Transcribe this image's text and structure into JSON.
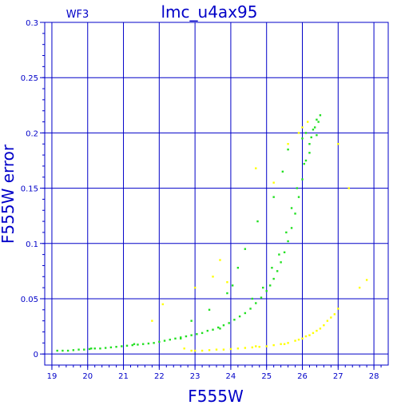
{
  "chart_data": {
    "type": "scatter",
    "title": "lmc_u4ax95",
    "corner_label": "WF3",
    "xlabel": "F555W",
    "ylabel": "F555W error",
    "xlim": [
      18.8,
      28.4
    ],
    "ylim": [
      -0.01,
      0.3
    ],
    "x_ticks": [
      19,
      20,
      21,
      22,
      23,
      24,
      25,
      26,
      27,
      28
    ],
    "y_ticks": [
      0,
      0.05,
      0.1,
      0.15,
      0.2,
      0.25,
      0.3
    ],
    "x_tick_labels": [
      "19",
      "20",
      "21",
      "22",
      "23",
      "24",
      "25",
      "26",
      "27",
      "28"
    ],
    "y_tick_labels": [
      "0",
      "0.05",
      "0.1",
      "0.15",
      "0.2",
      "0.25",
      "0.3"
    ],
    "grid": true,
    "colors": {
      "axis": "#0000c8",
      "grid": "#0000c8",
      "green_series": "#22e022",
      "yellow_series": "#ffff00"
    },
    "series": [
      {
        "color": "green",
        "points": [
          [
            19.15,
            0.003
          ],
          [
            19.3,
            0.003
          ],
          [
            19.45,
            0.003
          ],
          [
            19.6,
            0.0035
          ],
          [
            19.75,
            0.004
          ],
          [
            19.9,
            0.004
          ],
          [
            20.05,
            0.0045
          ],
          [
            20.2,
            0.005
          ],
          [
            20.35,
            0.005
          ],
          [
            20.5,
            0.0055
          ],
          [
            20.65,
            0.006
          ],
          [
            20.8,
            0.0065
          ],
          [
            20.95,
            0.007
          ],
          [
            21.1,
            0.0075
          ],
          [
            21.25,
            0.008
          ],
          [
            21.4,
            0.0085
          ],
          [
            21.55,
            0.009
          ],
          [
            21.7,
            0.0095
          ],
          [
            21.85,
            0.01
          ],
          [
            22.0,
            0.011
          ],
          [
            22.15,
            0.012
          ],
          [
            22.3,
            0.013
          ],
          [
            22.45,
            0.014
          ],
          [
            22.6,
            0.015
          ],
          [
            22.75,
            0.016
          ],
          [
            22.9,
            0.017
          ],
          [
            23.05,
            0.018
          ],
          [
            23.2,
            0.019
          ],
          [
            23.35,
            0.021
          ],
          [
            23.5,
            0.022
          ],
          [
            23.65,
            0.024
          ],
          [
            23.8,
            0.026
          ],
          [
            23.95,
            0.028
          ],
          [
            24.1,
            0.031
          ],
          [
            24.25,
            0.034
          ],
          [
            24.4,
            0.037
          ],
          [
            24.55,
            0.041
          ],
          [
            24.7,
            0.046
          ],
          [
            24.85,
            0.051
          ],
          [
            25.0,
            0.057
          ],
          [
            25.1,
            0.062
          ],
          [
            25.2,
            0.068
          ],
          [
            25.3,
            0.075
          ],
          [
            25.4,
            0.083
          ],
          [
            25.5,
            0.092
          ],
          [
            25.6,
            0.102
          ],
          [
            25.7,
            0.114
          ],
          [
            25.8,
            0.127
          ],
          [
            25.9,
            0.142
          ],
          [
            26.0,
            0.158
          ],
          [
            26.1,
            0.175
          ],
          [
            26.2,
            0.19
          ],
          [
            26.3,
            0.203
          ],
          [
            26.4,
            0.212
          ],
          [
            26.5,
            0.216
          ],
          [
            20.1,
            0.005
          ],
          [
            21.3,
            0.009
          ],
          [
            22.6,
            0.014
          ],
          [
            23.7,
            0.023
          ],
          [
            24.6,
            0.05
          ],
          [
            24.9,
            0.06
          ],
          [
            25.15,
            0.078
          ],
          [
            25.35,
            0.09
          ],
          [
            25.55,
            0.11
          ],
          [
            25.7,
            0.132
          ],
          [
            25.85,
            0.15
          ],
          [
            26.05,
            0.172
          ],
          [
            26.25,
            0.196
          ],
          [
            26.35,
            0.205
          ],
          [
            26.45,
            0.21
          ],
          [
            23.9,
            0.055
          ],
          [
            24.2,
            0.078
          ],
          [
            24.4,
            0.095
          ],
          [
            24.75,
            0.12
          ],
          [
            25.2,
            0.142
          ],
          [
            25.45,
            0.165
          ],
          [
            26.0,
            0.195
          ],
          [
            26.1,
            0.2
          ],
          [
            23.4,
            0.04
          ],
          [
            22.9,
            0.03
          ],
          [
            24.05,
            0.062
          ],
          [
            25.6,
            0.185
          ],
          [
            26.2,
            0.182
          ],
          [
            26.4,
            0.198
          ]
        ]
      },
      {
        "color": "yellow",
        "points": [
          [
            23.0,
            0.003
          ],
          [
            23.2,
            0.003
          ],
          [
            23.4,
            0.0035
          ],
          [
            23.6,
            0.004
          ],
          [
            23.8,
            0.004
          ],
          [
            24.0,
            0.0045
          ],
          [
            24.2,
            0.005
          ],
          [
            24.4,
            0.0055
          ],
          [
            24.6,
            0.006
          ],
          [
            24.8,
            0.0065
          ],
          [
            25.0,
            0.007
          ],
          [
            25.2,
            0.008
          ],
          [
            25.4,
            0.009
          ],
          [
            25.6,
            0.01
          ],
          [
            25.8,
            0.012
          ],
          [
            26.0,
            0.014
          ],
          [
            26.2,
            0.017
          ],
          [
            26.4,
            0.021
          ],
          [
            26.6,
            0.026
          ],
          [
            26.8,
            0.033
          ],
          [
            27.0,
            0.041
          ],
          [
            25.5,
            0.009
          ],
          [
            25.9,
            0.013
          ],
          [
            26.3,
            0.019
          ],
          [
            26.5,
            0.023
          ],
          [
            26.7,
            0.03
          ],
          [
            26.9,
            0.036
          ],
          [
            22.7,
            0.005
          ],
          [
            22.9,
            0.003
          ],
          [
            24.7,
            0.007
          ],
          [
            26.1,
            0.016
          ],
          [
            23.5,
            0.07
          ],
          [
            23.0,
            0.06
          ],
          [
            23.9,
            0.065
          ],
          [
            25.2,
            0.155
          ],
          [
            25.6,
            0.19
          ],
          [
            25.9,
            0.2
          ],
          [
            26.0,
            0.205
          ],
          [
            27.0,
            0.19
          ],
          [
            27.3,
            0.15
          ],
          [
            27.6,
            0.06
          ],
          [
            27.8,
            0.067
          ],
          [
            24.7,
            0.168
          ],
          [
            26.15,
            0.21
          ],
          [
            22.1,
            0.045
          ],
          [
            21.8,
            0.03
          ],
          [
            23.7,
            0.085
          ]
        ]
      }
    ]
  }
}
